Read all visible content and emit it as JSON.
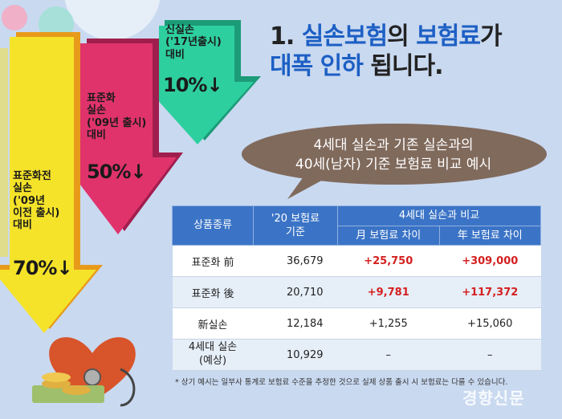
{
  "headline": {
    "number": "1.",
    "w1": "실손보험",
    "w2": "의",
    "w3": "보험료",
    "w4": "가",
    "w5": "대폭 인하",
    "w6": "됩니다."
  },
  "arrows": [
    {
      "label": "표준화전\n실손\n('09년\n이전 출시)\n대비",
      "percent": "70%↓",
      "color": "#f5e32a"
    },
    {
      "label": "표준화\n실손\n('09년 출시)\n대비",
      "percent": "50%↓",
      "color": "#e0336c"
    },
    {
      "label": "신실손\n('17년출시)\n대비",
      "percent": "10%↓",
      "color": "#2ecf9e"
    }
  ],
  "bubble": {
    "line1": "4세대 실손과 기존 실손과의",
    "line2": "40세(남자) 기준 보험료 비교 예시"
  },
  "table": {
    "headers": {
      "product": "상품종류",
      "base": "'20 보험료\n기준",
      "compare": "4세대 실손과 비교",
      "monthly": "月 보험료 차이",
      "yearly": "年 보험료 차이"
    },
    "rows": [
      {
        "product": "표준화 前",
        "base": "36,679",
        "monthly": "+25,750",
        "yearly": "+309,000",
        "red": true
      },
      {
        "product": "표준화 後",
        "base": "20,710",
        "monthly": "+9,781",
        "yearly": "+117,372",
        "red": true
      },
      {
        "product": "新실손",
        "base": "12,184",
        "monthly": "+1,255",
        "yearly": "+15,060",
        "red": false
      },
      {
        "product": "4세대 실손\n(예상)",
        "base": "10,929",
        "monthly": "–",
        "yearly": "–",
        "red": false
      }
    ]
  },
  "footnote": "* 상기 예시는 일부사 통계로 보험료 수준을 추정한 것으로 실제 상품 출시 시 보험료는 다를 수 있습니다.",
  "watermark": "경향신문"
}
